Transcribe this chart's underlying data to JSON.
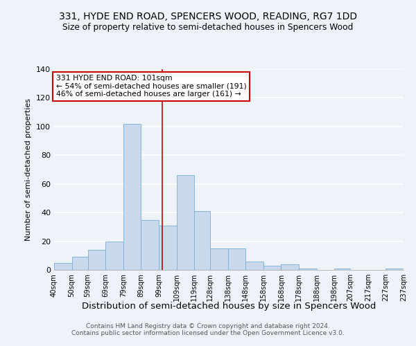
{
  "title": "331, HYDE END ROAD, SPENCERS WOOD, READING, RG7 1DD",
  "subtitle": "Size of property relative to semi-detached houses in Spencers Wood",
  "xlabel": "Distribution of semi-detached houses by size in Spencers Wood",
  "ylabel": "Number of semi-detached properties",
  "bin_edges": [
    40,
    50,
    59,
    69,
    79,
    89,
    99,
    109,
    119,
    128,
    138,
    148,
    158,
    168,
    178,
    188,
    198,
    207,
    217,
    227,
    237
  ],
  "bar_heights": [
    5,
    9,
    14,
    20,
    102,
    35,
    31,
    66,
    41,
    15,
    15,
    6,
    3,
    4,
    1,
    0,
    1,
    0,
    0,
    1
  ],
  "tick_labels": [
    "40sqm",
    "50sqm",
    "59sqm",
    "69sqm",
    "79sqm",
    "89sqm",
    "99sqm",
    "109sqm",
    "119sqm",
    "128sqm",
    "138sqm",
    "148sqm",
    "158sqm",
    "168sqm",
    "178sqm",
    "188sqm",
    "198sqm",
    "207sqm",
    "217sqm",
    "227sqm",
    "237sqm"
  ],
  "bar_color": "#c8d9ed",
  "bar_edgecolor": "#7aafd4",
  "property_line_x": 101,
  "annotation_title": "331 HYDE END ROAD: 101sqm",
  "annotation_line1": "← 54% of semi-detached houses are smaller (191)",
  "annotation_line2": "46% of semi-detached houses are larger (161) →",
  "annotation_box_color": "#ffffff",
  "annotation_box_edgecolor": "#cc0000",
  "property_line_color": "#cc0000",
  "ylim": [
    0,
    140
  ],
  "yticks": [
    0,
    20,
    40,
    60,
    80,
    100,
    120,
    140
  ],
  "footer1": "Contains HM Land Registry data © Crown copyright and database right 2024.",
  "footer2": "Contains public sector information licensed under the Open Government Licence v3.0.",
  "background_color": "#eef3fa"
}
